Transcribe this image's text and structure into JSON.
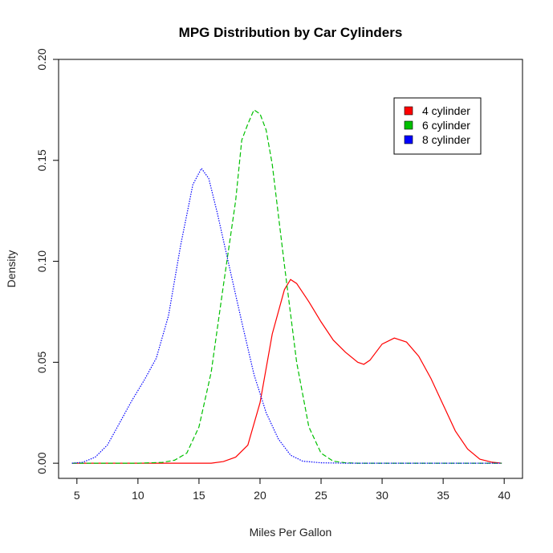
{
  "chart_data": {
    "type": "line",
    "title": "MPG Distribution by Car Cylinders",
    "xlabel": "Miles Per Gallon",
    "ylabel": "Density",
    "xlim": [
      3.5,
      41.5
    ],
    "ylim": [
      -0.0075,
      0.2
    ],
    "x_ticks": [
      5,
      10,
      15,
      20,
      25,
      30,
      35,
      40
    ],
    "x_tick_labels": [
      "5",
      "10",
      "15",
      "20",
      "25",
      "30",
      "35",
      "40"
    ],
    "y_ticks": [
      0.0,
      0.05,
      0.1,
      0.15,
      0.2
    ],
    "y_tick_labels": [
      "0.00",
      "0.05",
      "0.10",
      "0.15",
      "0.20"
    ],
    "grid": false,
    "legend_position": "top-right",
    "series": [
      {
        "name": "4 cylinder",
        "color": "#ff0000",
        "dash": "solid",
        "x": [
          4.6,
          10,
          12,
          14,
          16,
          17,
          18,
          19,
          20,
          21,
          22,
          22.5,
          23,
          24,
          25,
          26,
          27,
          28,
          28.5,
          29,
          30,
          31,
          32,
          33,
          34,
          35,
          36,
          37,
          38,
          39,
          39.8
        ],
        "y": [
          0,
          0,
          0,
          0,
          0,
          0.0008,
          0.003,
          0.009,
          0.03,
          0.064,
          0.086,
          0.091,
          0.089,
          0.08,
          0.07,
          0.061,
          0.055,
          0.05,
          0.049,
          0.051,
          0.059,
          0.062,
          0.06,
          0.053,
          0.042,
          0.029,
          0.016,
          0.007,
          0.002,
          0.0005,
          0
        ]
      },
      {
        "name": "6 cylinder",
        "color": "#00c000",
        "dash": "dashed",
        "x": [
          4.6,
          10,
          12,
          13,
          14,
          15,
          16,
          17,
          18,
          18.5,
          19,
          19.5,
          20,
          20.5,
          21,
          22,
          23,
          24,
          25,
          26,
          27,
          28,
          30,
          35,
          39.8
        ],
        "y": [
          0,
          0,
          0.0004,
          0.0015,
          0.005,
          0.018,
          0.045,
          0.088,
          0.13,
          0.16,
          0.168,
          0.175,
          0.173,
          0.165,
          0.148,
          0.098,
          0.05,
          0.018,
          0.005,
          0.001,
          0.0002,
          0,
          0,
          0,
          0
        ]
      },
      {
        "name": "8 cylinder",
        "color": "#0000ff",
        "dash": "dotted",
        "x": [
          4.6,
          5.5,
          6.5,
          7.5,
          8.5,
          9.5,
          10.5,
          11.5,
          12.5,
          13.5,
          14.5,
          15.2,
          15.8,
          16.5,
          17.5,
          18.5,
          19.5,
          20.5,
          21.5,
          22.5,
          23.5,
          25,
          27,
          30,
          35,
          39.8
        ],
        "y": [
          0,
          0.0005,
          0.003,
          0.009,
          0.02,
          0.031,
          0.041,
          0.052,
          0.073,
          0.108,
          0.138,
          0.146,
          0.141,
          0.124,
          0.097,
          0.07,
          0.044,
          0.025,
          0.012,
          0.004,
          0.001,
          0.0002,
          0,
          0,
          0,
          0
        ]
      }
    ]
  }
}
